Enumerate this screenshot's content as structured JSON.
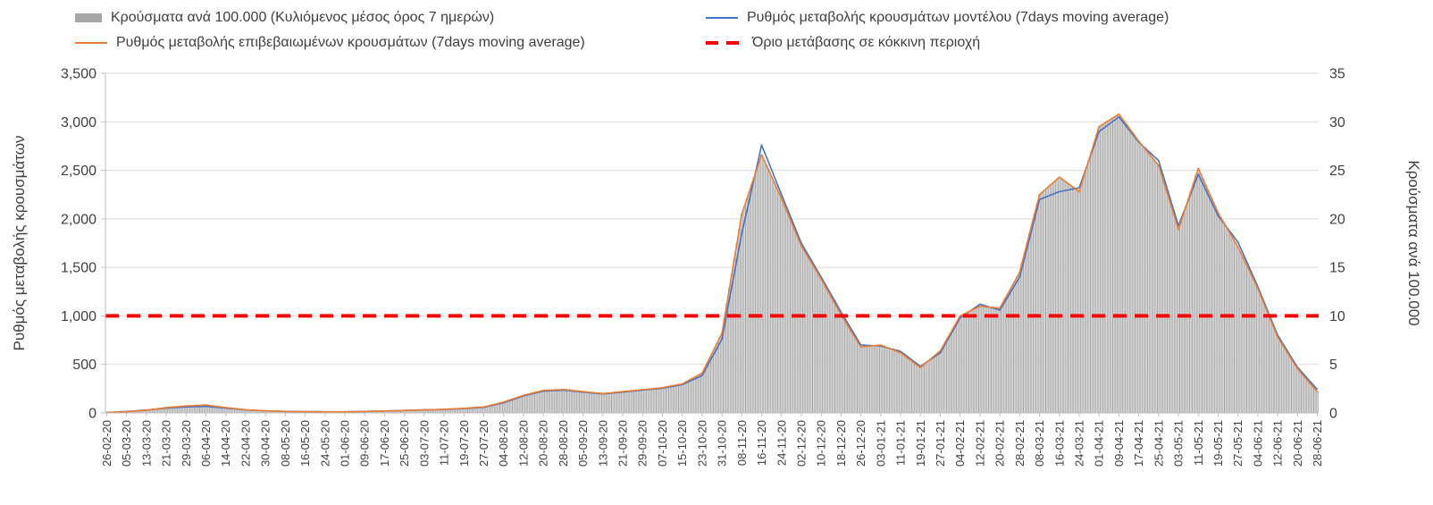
{
  "legend": {
    "items": [
      {
        "label": "Κρούσματα ανά 100.000 (Κυλιόμενος μέσος όρος 7 ημερών)",
        "swatch": "bar",
        "color": "#a6a6a6"
      },
      {
        "label": "Ρυθμός μεταβολής κρουσμάτων μοντέλου (7days moving average)",
        "swatch": "line",
        "color": "#4472c4"
      },
      {
        "label": "Ρυθμός μεταβολής επιβεβαιωμένων κρουσμάτων (7days moving average)",
        "swatch": "line",
        "color": "#ed7d31"
      },
      {
        "label": "Όριο μετάβασης σε κόκκινη περιοχή",
        "swatch": "dashed",
        "color": "#ff0000"
      }
    ]
  },
  "chart_data": {
    "type": "combo",
    "days_per_label": 8,
    "x_dates": [
      "26-02-20",
      "05-03-20",
      "13-03-20",
      "21-03-20",
      "29-03-20",
      "06-04-20",
      "14-04-20",
      "22-04-20",
      "30-04-20",
      "08-05-20",
      "16-05-20",
      "24-05-20",
      "01-06-20",
      "09-06-20",
      "17-06-20",
      "25-06-20",
      "03-07-20",
      "11-07-20",
      "19-07-20",
      "27-07-20",
      "04-08-20",
      "12-08-20",
      "20-08-20",
      "28-08-20",
      "05-09-20",
      "13-09-20",
      "21-09-20",
      "29-09-20",
      "07-10-20",
      "15-10-20",
      "23-10-20",
      "31-10-20",
      "08-11-20",
      "16-11-20",
      "24-11-20",
      "02-12-20",
      "10-12-20",
      "18-12-20",
      "26-12-20",
      "03-01-21",
      "11-01-21",
      "19-01-21",
      "27-01-21",
      "04-02-21",
      "12-02-21",
      "20-02-21",
      "28-02-21",
      "08-03-21",
      "16-03-21",
      "24-03-21",
      "01-04-21",
      "09-04-21",
      "17-04-21",
      "25-04-21",
      "03-05-21",
      "11-05-21",
      "19-05-21",
      "27-05-21",
      "04-06-21",
      "12-06-21",
      "20-06-21",
      "28-06-21"
    ],
    "left_axis": {
      "title": "Ρυθμός μεταβολής κρουσμάτων",
      "min": 0,
      "max": 3500,
      "step": 500,
      "tick_labels": [
        "0",
        "500",
        "1,000",
        "1,500",
        "2,000",
        "2,500",
        "3,000",
        "3,500"
      ]
    },
    "right_axis": {
      "title": "Κρούσματα ανά 100.000",
      "min": 0,
      "max": 35,
      "step": 5,
      "tick_labels": [
        "0",
        "5",
        "10",
        "15",
        "20",
        "25",
        "30",
        "35"
      ]
    },
    "series": [
      {
        "name": "Κρούσματα ανά 100.000 (Κυλιόμενος μέσος όρος 7 ημερών)",
        "type": "bar",
        "axis": "right",
        "color": "#d2d2d2",
        "border": "#9a9a9a",
        "values": [
          0.1,
          0.1,
          0.3,
          0.6,
          0.7,
          0.8,
          0.6,
          0.3,
          0.2,
          0.2,
          0.1,
          0.1,
          0.1,
          0.2,
          0.2,
          0.3,
          0.3,
          0.4,
          0.5,
          0.6,
          1.1,
          1.8,
          2.3,
          2.4,
          2.2,
          2.0,
          2.2,
          2.4,
          2.6,
          3.0,
          4.1,
          8.2,
          20.5,
          26.6,
          22.1,
          17.2,
          13.8,
          10.1,
          6.8,
          7.0,
          6.2,
          4.7,
          6.4,
          10.0,
          11.0,
          10.8,
          14.5,
          22.5,
          24.3,
          22.8,
          29.5,
          30.8,
          28.0,
          25.5,
          18.9,
          25.2,
          20.6,
          17.1,
          12.8,
          7.8,
          4.6,
          2.2
        ]
      },
      {
        "name": "Ρυθμός μεταβολής κρουσμάτων μοντέλου (7days moving average)",
        "type": "line",
        "axis": "left",
        "color": "#4472c4",
        "values": [
          5,
          15,
          30,
          50,
          62,
          68,
          50,
          32,
          22,
          16,
          14,
          12,
          12,
          16,
          20,
          26,
          32,
          36,
          45,
          58,
          105,
          175,
          225,
          235,
          215,
          196,
          215,
          235,
          255,
          292,
          385,
          760,
          1850,
          2760,
          2250,
          1750,
          1400,
          1040,
          700,
          690,
          635,
          480,
          620,
          980,
          1120,
          1060,
          1400,
          2200,
          2280,
          2320,
          2900,
          3050,
          2790,
          2600,
          1930,
          2460,
          2030,
          1760,
          1300,
          800,
          470,
          240
        ]
      },
      {
        "name": "Ρυθμός μεταβολής επιβεβαιωμένων κρουσμάτων (7days moving average)",
        "type": "line",
        "axis": "left",
        "color": "#ed7d31",
        "values": [
          5,
          12,
          28,
          55,
          72,
          82,
          55,
          33,
          22,
          15,
          13,
          11,
          11,
          15,
          20,
          25,
          31,
          38,
          48,
          62,
          112,
          182,
          232,
          242,
          220,
          200,
          220,
          240,
          260,
          300,
          410,
          820,
          2050,
          2660,
          2210,
          1720,
          1380,
          1010,
          680,
          700,
          620,
          468,
          640,
          1000,
          1100,
          1080,
          1450,
          2250,
          2430,
          2280,
          2950,
          3080,
          2800,
          2550,
          1890,
          2520,
          2060,
          1710,
          1280,
          780,
          455,
          215
        ]
      },
      {
        "name": "Όριο μετάβασης σε κόκκινη περιοχή",
        "type": "threshold",
        "axis": "left",
        "color": "#ff0000",
        "value": 1000
      }
    ]
  }
}
